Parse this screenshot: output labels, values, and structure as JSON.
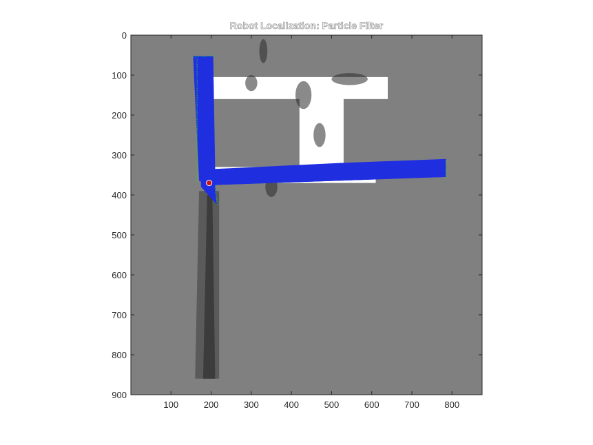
{
  "chart_data": {
    "type": "heatmap",
    "title": "Robot Localization: Particle Filter",
    "x_ticks": [
      100,
      200,
      300,
      400,
      500,
      600,
      700,
      800
    ],
    "y_ticks": [
      0,
      100,
      200,
      300,
      400,
      500,
      600,
      700,
      800,
      900
    ],
    "xlim": [
      0,
      875
    ],
    "ylim": [
      0,
      900
    ],
    "y_reversed": true,
    "grid": false,
    "legend": "none",
    "colors": {
      "unknown": "#808080",
      "free": "#ffffff",
      "scan": "#1f2fe0",
      "scan_endpoints": "#22dd22",
      "robot": "#cc1111",
      "shadow": "#3a3a3a"
    },
    "map_regions": {
      "free_space": [
        {
          "x": [
            200,
            640
          ],
          "y": [
            105,
            160
          ]
        },
        {
          "x": [
            420,
            530
          ],
          "y": [
            120,
            330
          ]
        },
        {
          "x": [
            200,
            610
          ],
          "y": [
            330,
            370
          ]
        }
      ],
      "scan_beams": [
        {
          "from": [
            190,
            370
          ],
          "to_x": [
            155,
            205
          ],
          "to_y": [
            52,
            52
          ]
        },
        {
          "from": [
            190,
            370
          ],
          "to_x": [
            785,
            785
          ],
          "to_y": [
            315,
            355
          ]
        }
      ],
      "robot_position": [
        195,
        370
      ]
    }
  }
}
